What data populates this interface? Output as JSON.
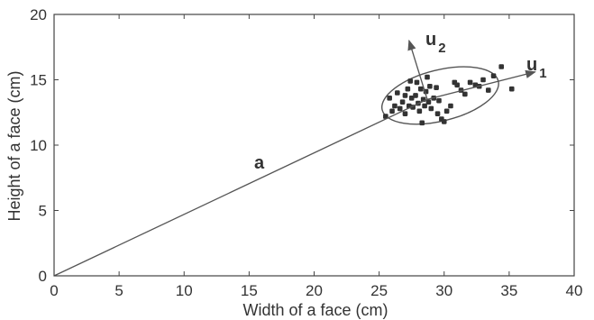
{
  "chart_data": {
    "type": "scatter",
    "title": "",
    "xlabel": "Width of a face (cm)",
    "ylabel": "Height of a face (cm)",
    "xlim": [
      0,
      40
    ],
    "ylim": [
      0,
      20
    ],
    "xticks": [
      0,
      5,
      10,
      15,
      20,
      25,
      30,
      35,
      40
    ],
    "yticks": [
      0,
      5,
      10,
      15,
      20
    ],
    "grid": false,
    "legend": "none",
    "series": [
      {
        "points": [
          [
            25.5,
            12.2
          ],
          [
            25.8,
            13.6
          ],
          [
            26.0,
            12.6
          ],
          [
            26.2,
            13.0
          ],
          [
            26.4,
            14.0
          ],
          [
            26.6,
            12.8
          ],
          [
            26.8,
            13.3
          ],
          [
            27.0,
            12.4
          ],
          [
            27.0,
            13.8
          ],
          [
            27.2,
            14.3
          ],
          [
            27.3,
            13.0
          ],
          [
            27.5,
            13.6
          ],
          [
            27.6,
            12.9
          ],
          [
            27.8,
            13.8
          ],
          [
            27.9,
            14.8
          ],
          [
            28.0,
            13.2
          ],
          [
            28.1,
            12.6
          ],
          [
            28.2,
            14.3
          ],
          [
            28.3,
            11.7
          ],
          [
            28.4,
            13.5
          ],
          [
            28.5,
            13.0
          ],
          [
            28.6,
            14.1
          ],
          [
            28.7,
            15.2
          ],
          [
            28.8,
            13.3
          ],
          [
            29.0,
            12.8
          ],
          [
            29.2,
            13.6
          ],
          [
            29.4,
            14.4
          ],
          [
            29.5,
            12.4
          ],
          [
            29.6,
            13.4
          ],
          [
            29.8,
            12.0
          ],
          [
            30.0,
            11.8
          ],
          [
            30.2,
            12.6
          ],
          [
            30.5,
            13.0
          ],
          [
            30.8,
            14.8
          ],
          [
            31.0,
            14.6
          ],
          [
            31.3,
            14.2
          ],
          [
            31.6,
            13.9
          ],
          [
            32.0,
            14.8
          ],
          [
            32.4,
            14.6
          ],
          [
            32.7,
            14.5
          ],
          [
            33.0,
            15.0
          ],
          [
            33.4,
            14.2
          ],
          [
            33.8,
            15.3
          ],
          [
            34.4,
            16.0
          ],
          [
            35.2,
            14.3
          ],
          [
            27.4,
            14.9
          ],
          [
            28.9,
            14.5
          ]
        ]
      }
    ],
    "vectors": [
      {
        "label": "a",
        "from": [
          0,
          0
        ],
        "to": [
          28.7,
          13.5
        ]
      },
      {
        "label": "u",
        "subscript": "1",
        "from": [
          28.7,
          13.5
        ],
        "to": [
          37.0,
          15.6
        ]
      },
      {
        "label": "u",
        "subscript": "2",
        "from": [
          28.7,
          13.5
        ],
        "to": [
          27.3,
          18.0
        ]
      }
    ],
    "ellipse": {
      "center": [
        29.7,
        13.8
      ],
      "rx": 4.6,
      "ry": 1.95,
      "angle_deg": 14
    }
  },
  "colors": {
    "axis": "#444444",
    "points": "#333333",
    "lines": "#555555"
  }
}
